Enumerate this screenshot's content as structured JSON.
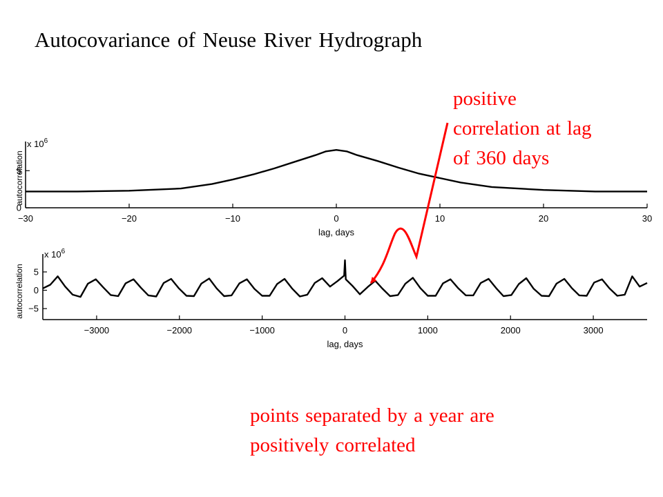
{
  "title": "Autocovariance of Neuse River Hydrograph",
  "annotation_1": [
    "positive",
    "correlation at lag",
    "of 360 days"
  ],
  "annotation_2": [
    "points separated by a year are",
    "positively correlated"
  ],
  "colors": {
    "annotation": "#ff0000",
    "curve": "#000000"
  },
  "chart_data": [
    {
      "type": "line",
      "xlabel": "lag, days",
      "ylabel": "autocorrelation",
      "y_multiplier": "x 10^6",
      "xlim": [
        -30,
        30
      ],
      "ylim": [
        0,
        8
      ],
      "xticks": [
        -30,
        -20,
        -10,
        0,
        10,
        20,
        30
      ],
      "yticks": [
        0,
        5
      ],
      "grid": false,
      "series": [
        {
          "x": [
            -30,
            -25,
            -20,
            -15,
            -12,
            -10,
            -8,
            -6,
            -4,
            -2,
            -1,
            0,
            1,
            2,
            4,
            6,
            8,
            10,
            12,
            15,
            20,
            25,
            30
          ],
          "y": [
            2.2,
            2.2,
            2.3,
            2.6,
            3.2,
            3.8,
            4.5,
            5.3,
            6.2,
            7.1,
            7.6,
            7.8,
            7.6,
            7.1,
            6.3,
            5.4,
            4.6,
            4.0,
            3.4,
            2.8,
            2.4,
            2.2,
            2.2
          ]
        }
      ]
    },
    {
      "type": "line",
      "xlabel": "lag, days",
      "ylabel": "autocorrelation",
      "y_multiplier": "x 10^6",
      "xlim": [
        -3650,
        3650
      ],
      "ylim": [
        -8,
        8
      ],
      "xticks": [
        -3000,
        -2000,
        -1000,
        0,
        1000,
        2000,
        3000
      ],
      "yticks": [
        -5,
        0,
        5
      ],
      "grid": false,
      "period_days": 365,
      "series": [
        {
          "x": [
            -3650,
            -3560,
            -3470,
            -3380,
            -3290,
            -3195,
            -3105,
            -3010,
            -2920,
            -2830,
            -2740,
            -2650,
            -2555,
            -2465,
            -2375,
            -2280,
            -2190,
            -2100,
            -2010,
            -1915,
            -1825,
            -1735,
            -1640,
            -1550,
            -1460,
            -1370,
            -1275,
            -1185,
            -1095,
            -1000,
            -910,
            -820,
            -730,
            -640,
            -545,
            -455,
            -365,
            -275,
            -180,
            -90,
            -10,
            0,
            10,
            90,
            180,
            275,
            365,
            455,
            545,
            640,
            730,
            820,
            910,
            1000,
            1095,
            1185,
            1275,
            1370,
            1460,
            1550,
            1640,
            1735,
            1825,
            1915,
            2010,
            2100,
            2190,
            2280,
            2375,
            2465,
            2555,
            2650,
            2740,
            2830,
            2920,
            3010,
            3105,
            3195,
            3290,
            3380,
            3470,
            3560,
            3650
          ],
          "y": [
            0.5,
            1.5,
            3.8,
            1.0,
            -1.2,
            -1.8,
            1.8,
            3.0,
            0.8,
            -1.3,
            -1.6,
            1.9,
            3.0,
            0.7,
            -1.4,
            -1.7,
            2.0,
            3.1,
            0.6,
            -1.5,
            -1.6,
            1.8,
            3.2,
            0.5,
            -1.6,
            -1.4,
            1.9,
            3.0,
            0.4,
            -1.5,
            -1.5,
            1.7,
            3.1,
            0.5,
            -1.7,
            -1.2,
            2.0,
            3.3,
            1.0,
            2.5,
            4.0,
            8.2,
            3.0,
            1.2,
            -1.1,
            0.9,
            2.6,
            0.4,
            -1.6,
            -1.3,
            1.8,
            3.4,
            0.6,
            -1.5,
            -1.5,
            1.9,
            3.0,
            0.5,
            -1.4,
            -1.4,
            2.0,
            3.1,
            0.6,
            -1.6,
            -1.3,
            1.7,
            3.3,
            0.4,
            -1.5,
            -1.6,
            1.8,
            3.1,
            0.6,
            -1.4,
            -1.5,
            2.1,
            3.0,
            0.5,
            -1.5,
            -1.2,
            3.8,
            1.0,
            2.0
          ]
        }
      ]
    }
  ]
}
